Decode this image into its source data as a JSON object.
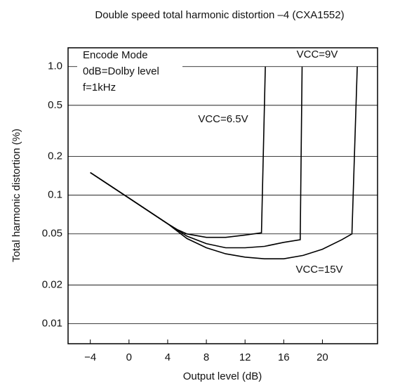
{
  "chart_data": {
    "type": "line",
    "title": "Double speed total harmonic distortion –4 (CXA1552)",
    "xlabel": "Output level (dB)",
    "ylabel": "Total harmonic distortion (%)",
    "annotations": [
      "Encode Mode",
      "0dB=Dolby level",
      "f=1kHz"
    ],
    "log_y": true,
    "grid": true,
    "xlim": [
      -6.3,
      25.7
    ],
    "xticks": [
      {
        "value": -4,
        "label": "−4"
      },
      0,
      4,
      8,
      12,
      16,
      20
    ],
    "ylim": [
      0.007,
      1.4
    ],
    "yticks": [
      {
        "value": 1,
        "label": "1.0"
      },
      0.5,
      0.2,
      0.1,
      0.05,
      0.02,
      0.01
    ],
    "series": [
      {
        "name": "VCC=6.5V",
        "color": "#000000",
        "x": [
          -4,
          0,
          4,
          5,
          6,
          8,
          10,
          12,
          13.7,
          14.1
        ],
        "values": [
          0.15,
          0.095,
          0.06,
          0.054,
          0.05,
          0.047,
          0.047,
          0.049,
          0.051,
          1.0
        ]
      },
      {
        "name": "VCC=9V",
        "color": "#000000",
        "x": [
          -4,
          0,
          4,
          6,
          8,
          10,
          12,
          14,
          16,
          17.7,
          17.9
        ],
        "values": [
          0.15,
          0.095,
          0.06,
          0.048,
          0.042,
          0.039,
          0.039,
          0.04,
          0.043,
          0.045,
          1.0
        ]
      },
      {
        "name": "VCC=15V",
        "color": "#000000",
        "x": [
          -4,
          0,
          4,
          6,
          8,
          10,
          12,
          14,
          16,
          18,
          20,
          22,
          23.05,
          23.6
        ],
        "values": [
          0.15,
          0.095,
          0.06,
          0.046,
          0.039,
          0.035,
          0.033,
          0.032,
          0.032,
          0.034,
          0.038,
          0.045,
          0.05,
          1.0
        ]
      }
    ]
  }
}
